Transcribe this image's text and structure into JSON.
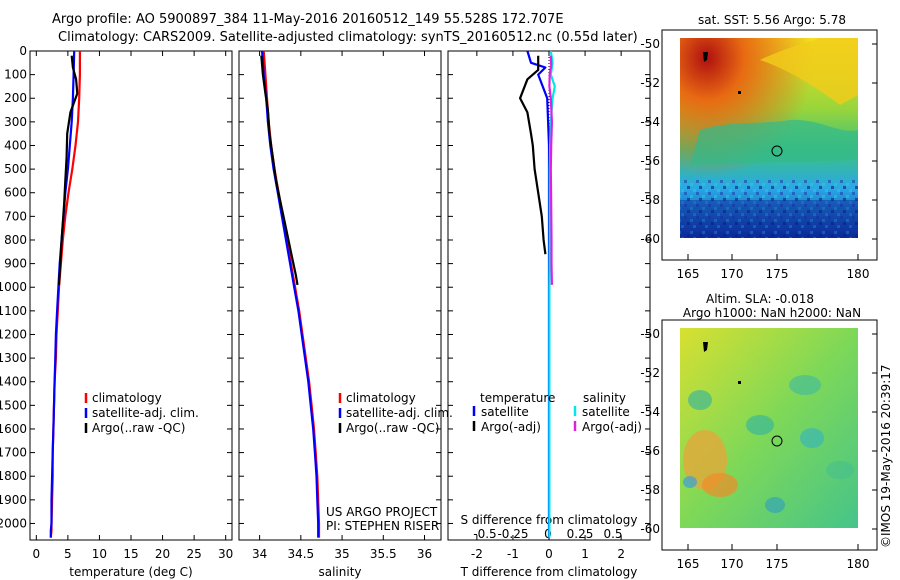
{
  "header": {
    "title_line1": "Argo profile: AO 5900897_384 11-May-2016 20160512_149 55.528S 172.707E",
    "title_line2": "Climatology: CARS2009. Satellite-adjusted climatology: synTS_20160512.nc (0.55d later)"
  },
  "credit": {
    "project": "US ARGO PROJECT",
    "pi": "PI: STEPHEN RISER",
    "watermark": "©IMOS 19-May-2016 20:39:17"
  },
  "colors": {
    "climatology": "#ff0000",
    "satellite": "#0000ff",
    "argo": "#000000",
    "sal_satellite": "#00e8e8",
    "sal_argo": "#e020e0"
  },
  "chart_data": [
    {
      "id": "temperature",
      "type": "line",
      "xlabel": "temperature (deg C)",
      "ylabel": "",
      "xlim": [
        -1,
        31
      ],
      "ylim": [
        2070,
        0
      ],
      "xticks": [
        0,
        5,
        10,
        15,
        20,
        25,
        30
      ],
      "yticks": [
        0,
        100,
        200,
        300,
        400,
        500,
        600,
        700,
        800,
        900,
        1000,
        1100,
        1200,
        1300,
        1400,
        1500,
        1600,
        1700,
        1800,
        1900,
        2000
      ],
      "legend": [
        "climatology",
        "satellite-adj. clim.",
        "Argo(..raw -QC)"
      ],
      "series": [
        {
          "name": "climatology",
          "color": "#ff0000",
          "x": [
            6.9,
            6.9,
            6.8,
            6.6,
            6.2,
            5.7,
            5.1,
            4.6,
            4.2,
            3.9,
            3.6,
            3.4,
            3.2,
            3.1,
            2.9,
            2.8,
            2.7,
            2.6,
            2.6,
            2.5,
            2.4,
            2.4,
            2.3
          ],
          "y": [
            0,
            100,
            200,
            300,
            400,
            500,
            600,
            700,
            800,
            900,
            1000,
            1100,
            1200,
            1300,
            1400,
            1500,
            1600,
            1700,
            1800,
            1900,
            2000,
            2030,
            2060
          ]
        },
        {
          "name": "satellite",
          "color": "#0000ff",
          "x": [
            6.0,
            5.9,
            5.8,
            5.6,
            5.3,
            5.0,
            4.6,
            4.3,
            4.0,
            3.7,
            3.5,
            3.3,
            3.1,
            3.0,
            2.9,
            2.8,
            2.7,
            2.6,
            2.5,
            2.4,
            2.4,
            2.3,
            2.3
          ],
          "y": [
            0,
            100,
            200,
            300,
            400,
            500,
            600,
            700,
            800,
            900,
            1000,
            1100,
            1200,
            1300,
            1400,
            1500,
            1600,
            1700,
            1800,
            1900,
            2000,
            2030,
            2060
          ]
        },
        {
          "name": "Argo",
          "color": "#000000",
          "x": [
            5.6,
            5.8,
            6.3,
            6.5,
            5.4,
            4.9,
            4.8,
            4.6,
            4.4,
            4.0,
            3.8,
            3.6
          ],
          "y": [
            20,
            70,
            120,
            180,
            260,
            350,
            450,
            550,
            650,
            800,
            900,
            990
          ]
        }
      ]
    },
    {
      "id": "salinity",
      "type": "line",
      "xlabel": "salinity",
      "ylabel": "",
      "xlim": [
        33.75,
        36.2
      ],
      "ylim": [
        2070,
        0
      ],
      "xticks": [
        34,
        34.5,
        35,
        35.5,
        36
      ],
      "legend": [
        "climatology",
        "satellite-adj. clim.",
        "Argo(..raw -QC)"
      ],
      "series": [
        {
          "name": "climatology",
          "color": "#ff0000",
          "x": [
            34.05,
            34.07,
            34.09,
            34.11,
            34.14,
            34.18,
            34.23,
            34.28,
            34.33,
            34.38,
            34.43,
            34.48,
            34.52,
            34.56,
            34.6,
            34.63,
            34.66,
            34.68,
            34.7,
            34.71,
            34.72,
            34.72
          ],
          "y": [
            0,
            100,
            200,
            300,
            400,
            500,
            600,
            700,
            800,
            900,
            1000,
            1100,
            1200,
            1300,
            1400,
            1500,
            1600,
            1700,
            1800,
            1900,
            2000,
            2060
          ]
        },
        {
          "name": "satellite",
          "color": "#0000ff",
          "x": [
            34.03,
            34.05,
            34.08,
            34.1,
            34.13,
            34.17,
            34.22,
            34.27,
            34.32,
            34.37,
            34.42,
            34.47,
            34.51,
            34.55,
            34.59,
            34.62,
            34.65,
            34.67,
            34.69,
            34.7,
            34.71,
            34.71
          ],
          "y": [
            0,
            100,
            200,
            300,
            400,
            500,
            600,
            700,
            800,
            900,
            1000,
            1100,
            1200,
            1300,
            1400,
            1500,
            1600,
            1700,
            1800,
            1900,
            2000,
            2060
          ]
        },
        {
          "name": "Argo",
          "color": "#000000",
          "x": [
            34.02,
            34.04,
            34.07,
            34.1,
            34.12,
            34.16,
            34.2,
            34.26,
            34.32,
            34.38,
            34.41,
            34.44,
            34.46
          ],
          "y": [
            20,
            100,
            180,
            250,
            350,
            450,
            550,
            650,
            750,
            850,
            900,
            950,
            990
          ]
        }
      ]
    },
    {
      "id": "differences",
      "type": "line",
      "xlabel": "T difference from climatology",
      "x2label": "S difference from climatology",
      "xlim": [
        -2.8,
        2.8
      ],
      "ylim": [
        2070,
        0
      ],
      "xticks": [
        -2,
        -1,
        0,
        1,
        2
      ],
      "x2ticks": [
        -0.5,
        -0.25,
        0,
        0.25,
        0.5
      ],
      "legend": [
        "temperature",
        "satellite",
        "Argo(-adj)",
        "salinity",
        "satellite",
        "Argo(-adj)"
      ],
      "series": [
        {
          "name": "temperature satellite",
          "color": "#0000ff",
          "x": [
            -0.6,
            -0.5,
            -0.1,
            -0.3,
            -0.05,
            0.0,
            0.0,
            0.0,
            0.0,
            0.0,
            0.0,
            0.0
          ],
          "y": [
            0,
            50,
            70,
            100,
            200,
            400,
            600,
            800,
            1000,
            1400,
            1800,
            2060
          ]
        },
        {
          "name": "temperature Argo",
          "color": "#000000",
          "x": [
            -0.3,
            -0.3,
            -0.6,
            -0.8,
            -0.6,
            -0.5,
            -0.45,
            -0.4,
            -0.3,
            -0.2,
            -0.15,
            -0.1
          ],
          "y": [
            20,
            80,
            120,
            200,
            260,
            350,
            400,
            500,
            600,
            700,
            800,
            860
          ]
        },
        {
          "name": "salinity satellite",
          "color": "#00e8e8",
          "x": [
            0.05,
            0.1,
            0.05,
            0.16,
            0.1,
            0.05,
            0.03,
            0.02,
            0.02,
            0.02,
            0.01,
            0.01,
            0.01
          ],
          "y": [
            0,
            50,
            100,
            150,
            200,
            300,
            400,
            500,
            600,
            800,
            1000,
            1500,
            2060
          ]
        },
        {
          "name": "salinity Argo",
          "color": "#e020e0",
          "x": [
            0.05,
            0.06,
            0.02,
            0.01,
            0.05,
            0.08,
            0.06,
            0.05,
            0.06,
            0.07,
            0.07,
            0.08
          ],
          "y": [
            20,
            60,
            100,
            150,
            200,
            300,
            400,
            500,
            650,
            800,
            900,
            990
          ]
        }
      ]
    },
    {
      "id": "sst_map",
      "type": "heatmap",
      "title": "sat. SST: 5.56  Argo: 5.78",
      "xticks": [
        165,
        170,
        175,
        180
      ],
      "yticks": [
        -50,
        -52,
        -54,
        -56,
        -58,
        -60
      ],
      "xlim": [
        162.5,
        181.5
      ],
      "ylim": [
        -60,
        -49.5
      ],
      "profile_marker": {
        "lon": 172.7,
        "lat": -55.5
      }
    },
    {
      "id": "sla_map",
      "type": "heatmap",
      "title_line1": "Altim. SLA: -0.018",
      "title_line2": "Argo h1000: NaN  h2000: NaN",
      "xticks": [
        165,
        170,
        175,
        180
      ],
      "yticks": [
        -50,
        -52,
        -54,
        -56,
        -58,
        -60
      ],
      "xlim": [
        162.5,
        181.5
      ],
      "ylim": [
        -60,
        -49.5
      ],
      "profile_marker": {
        "lon": 172.7,
        "lat": -55.5
      }
    }
  ]
}
